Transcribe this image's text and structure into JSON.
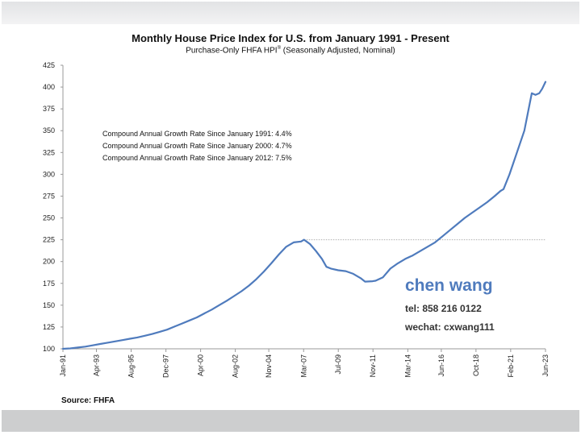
{
  "chart_data": {
    "type": "line",
    "title": "Monthly House Price Index for U.S. from January 1991 - Present",
    "subtitle": "Purchase-Only FHFA HPI",
    "subtitle_sup": "®",
    "subtitle_tail": " (Seasonally Adjusted, Nominal)",
    "xlabel": "",
    "ylabel": "",
    "ylim": [
      100,
      425
    ],
    "xlim": [
      1991.0,
      2023.42
    ],
    "y_ticks": [
      100,
      125,
      150,
      175,
      200,
      225,
      250,
      275,
      300,
      325,
      350,
      375,
      400,
      425
    ],
    "x_ticks": [
      {
        "label": "Jan-91",
        "t": 1991.0
      },
      {
        "label": "Apr-93",
        "t": 1993.25
      },
      {
        "label": "Aug-95",
        "t": 1995.58
      },
      {
        "label": "Dec-97",
        "t": 1997.92
      },
      {
        "label": "Apr-00",
        "t": 2000.25
      },
      {
        "label": "Aug-02",
        "t": 2002.58
      },
      {
        "label": "Nov-04",
        "t": 2004.83
      },
      {
        "label": "Mar-07",
        "t": 2007.17
      },
      {
        "label": "Jul-09",
        "t": 2009.5
      },
      {
        "label": "Nov-11",
        "t": 2011.83
      },
      {
        "label": "Mar-14",
        "t": 2014.17
      },
      {
        "label": "Jun-16",
        "t": 2016.42
      },
      {
        "label": "Oct-18",
        "t": 2018.75
      },
      {
        "label": "Feb-21",
        "t": 2021.08
      },
      {
        "label": "Jun-23",
        "t": 2023.42
      }
    ],
    "grid": false,
    "legend": "none",
    "series": [
      {
        "name": "Purchase-Only FHFA HPI",
        "color": "#4f7bbd",
        "x": [
          1991.0,
          1991.5,
          1992.0,
          1992.5,
          1993.0,
          1993.5,
          1994.0,
          1994.5,
          1995.0,
          1995.5,
          1996.0,
          1996.5,
          1997.0,
          1997.5,
          1998.0,
          1998.5,
          1999.0,
          1999.5,
          2000.0,
          2000.5,
          2001.0,
          2001.5,
          2002.0,
          2002.5,
          2003.0,
          2003.5,
          2004.0,
          2004.5,
          2005.0,
          2005.5,
          2006.0,
          2006.5,
          2007.0,
          2007.2,
          2007.6,
          2008.0,
          2008.4,
          2008.7,
          2009.0,
          2009.5,
          2010.0,
          2010.5,
          2011.0,
          2011.3,
          2011.8,
          2012.0,
          2012.5,
          2013.0,
          2013.5,
          2014.0,
          2014.5,
          2015.0,
          2015.5,
          2016.0,
          2016.5,
          2017.0,
          2017.5,
          2018.0,
          2018.5,
          2019.0,
          2019.5,
          2020.0,
          2020.4,
          2020.6,
          2021.0,
          2021.5,
          2022.0,
          2022.5,
          2022.75,
          2023.0,
          2023.2,
          2023.42
        ],
        "values": [
          100,
          100.5,
          101.5,
          102.5,
          104,
          105.5,
          107,
          108.5,
          110,
          111.5,
          113,
          115,
          117,
          119.5,
          122,
          125.5,
          129,
          132.5,
          136,
          140.5,
          145,
          150,
          155,
          160.5,
          166,
          172.5,
          180,
          188.5,
          198,
          208,
          217,
          222,
          223,
          225,
          220,
          212,
          203,
          194,
          192,
          190,
          189,
          186,
          181,
          177,
          177.5,
          178,
          182,
          192,
          198,
          203,
          207,
          212,
          217,
          222,
          229,
          236,
          243,
          250,
          256,
          262,
          268,
          275,
          281,
          283,
          300,
          325,
          350,
          393,
          391,
          393,
          398,
          406
        ]
      }
    ],
    "annotations": [
      {
        "text": "Compound Annual Growth Rate Since January 1991:  4.4%"
      },
      {
        "text": "Compound Annual Growth Rate Since January 2000:  4.7%"
      },
      {
        "text": "Compound Annual Growth Rate Since January 2012:  7.5%"
      }
    ],
    "reference_line": {
      "value": 225,
      "from_t": 2007.2,
      "to_t": 2023.42,
      "style": "dotted",
      "color": "#b0b0b0"
    }
  },
  "contact": {
    "name": "chen wang",
    "tel": "tel: 858 216 0122",
    "wechat": "wechat: cxwang111"
  },
  "source": "Source: FHFA"
}
